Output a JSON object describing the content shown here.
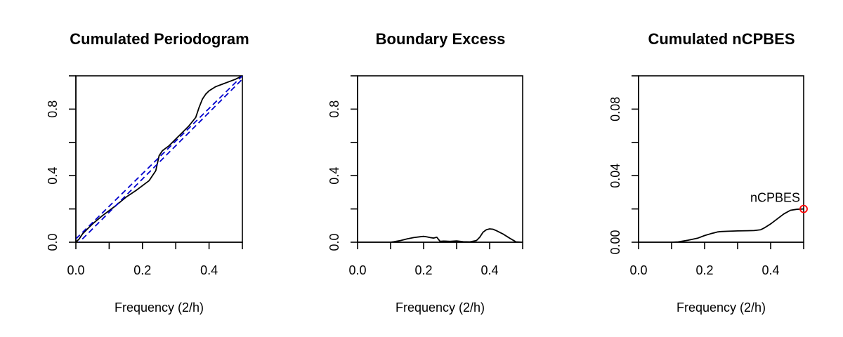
{
  "chart_data": [
    {
      "type": "line",
      "title": "Cumulated Periodogram",
      "xlabel": "Frequency (2/h)",
      "ylabel": "",
      "xlim": [
        0,
        0.5
      ],
      "ylim": [
        0,
        1
      ],
      "xticks": [
        0,
        0.1,
        0.2,
        0.3,
        0.4,
        0.5
      ],
      "xtick_labels": [
        "0.0",
        "",
        "0.2",
        "",
        "0.4",
        ""
      ],
      "yticks": [
        0,
        0.2,
        0.4,
        0.6,
        0.8,
        1.0
      ],
      "ytick_labels": [
        "0.0",
        "",
        "0.4",
        "",
        "0.8",
        ""
      ],
      "series": [
        {
          "role": "cumulated periodogram",
          "color": "#000000",
          "style": "solid",
          "x": [
            0,
            0.01,
            0.02,
            0.05,
            0.08,
            0.1,
            0.12,
            0.15,
            0.18,
            0.2,
            0.22,
            0.24,
            0.25,
            0.26,
            0.28,
            0.3,
            0.32,
            0.34,
            0.36,
            0.37,
            0.38,
            0.39,
            0.4,
            0.42,
            0.44,
            0.46,
            0.48,
            0.5
          ],
          "y": [
            0,
            0.02,
            0.05,
            0.11,
            0.16,
            0.19,
            0.22,
            0.27,
            0.31,
            0.34,
            0.37,
            0.43,
            0.52,
            0.55,
            0.58,
            0.62,
            0.66,
            0.7,
            0.75,
            0.81,
            0.86,
            0.89,
            0.91,
            0.935,
            0.95,
            0.965,
            0.98,
            1.0
          ]
        },
        {
          "role": "upper confidence band",
          "color": "#0000cd",
          "style": "dashed",
          "x": [
            0,
            0.5
          ],
          "y": [
            0.02,
            1.0
          ]
        },
        {
          "role": "lower confidence band",
          "color": "#0000cd",
          "style": "dashed",
          "x": [
            0,
            0.5
          ],
          "y": [
            -0.02,
            0.98
          ]
        }
      ]
    },
    {
      "type": "line",
      "title": "Boundary Excess",
      "xlabel": "Frequency (2/h)",
      "ylabel": "",
      "xlim": [
        0,
        0.5
      ],
      "ylim": [
        0,
        1
      ],
      "xticks": [
        0,
        0.1,
        0.2,
        0.3,
        0.4,
        0.5
      ],
      "xtick_labels": [
        "0.0",
        "",
        "0.2",
        "",
        "0.4",
        ""
      ],
      "yticks": [
        0,
        0.2,
        0.4,
        0.6,
        0.8,
        1.0
      ],
      "ytick_labels": [
        "0.0",
        "",
        "0.4",
        "",
        "0.8",
        ""
      ],
      "series": [
        {
          "role": "boundary excess",
          "color": "#000000",
          "style": "solid",
          "x": [
            0,
            0.1,
            0.11,
            0.13,
            0.15,
            0.17,
            0.19,
            0.2,
            0.21,
            0.22,
            0.23,
            0.24,
            0.25,
            0.26,
            0.28,
            0.3,
            0.32,
            0.34,
            0.36,
            0.37,
            0.38,
            0.39,
            0.4,
            0.41,
            0.42,
            0.44,
            0.46,
            0.48,
            0.5
          ],
          "y": [
            0,
            0,
            0.003,
            0.01,
            0.02,
            0.028,
            0.033,
            0.035,
            0.032,
            0.028,
            0.025,
            0.03,
            0.005,
            0.007,
            0.005,
            0.008,
            0.003,
            0.002,
            0.01,
            0.03,
            0.06,
            0.075,
            0.08,
            0.078,
            0.07,
            0.05,
            0.025,
            0.002,
            0
          ]
        }
      ]
    },
    {
      "type": "line",
      "title": "Cumulated nCPBES",
      "xlabel": "Frequency (2/h)",
      "ylabel": "",
      "xlim": [
        0,
        0.5
      ],
      "ylim": [
        0,
        0.1
      ],
      "xticks": [
        0,
        0.1,
        0.2,
        0.3,
        0.4,
        0.5
      ],
      "xtick_labels": [
        "0.0",
        "",
        "0.2",
        "",
        "0.4",
        ""
      ],
      "yticks": [
        0,
        0.02,
        0.04,
        0.06,
        0.08,
        0.1
      ],
      "ytick_labels": [
        "0.00",
        "",
        "0.04",
        "",
        "0.08",
        ""
      ],
      "series": [
        {
          "role": "cumulated nCPBES",
          "color": "#000000",
          "style": "solid",
          "x": [
            0,
            0.1,
            0.12,
            0.15,
            0.18,
            0.2,
            0.22,
            0.24,
            0.25,
            0.27,
            0.3,
            0.33,
            0.35,
            0.37,
            0.38,
            0.4,
            0.42,
            0.44,
            0.46,
            0.48,
            0.5
          ],
          "y": [
            0,
            0,
            0.0002,
            0.0012,
            0.0025,
            0.004,
            0.0052,
            0.0062,
            0.0064,
            0.0066,
            0.0068,
            0.0069,
            0.007,
            0.0075,
            0.0085,
            0.011,
            0.014,
            0.017,
            0.0192,
            0.0198,
            0.02
          ]
        }
      ],
      "marker": {
        "x": 0.5,
        "y": 0.02,
        "color": "#ff0000",
        "label": "nCPBES"
      }
    }
  ]
}
